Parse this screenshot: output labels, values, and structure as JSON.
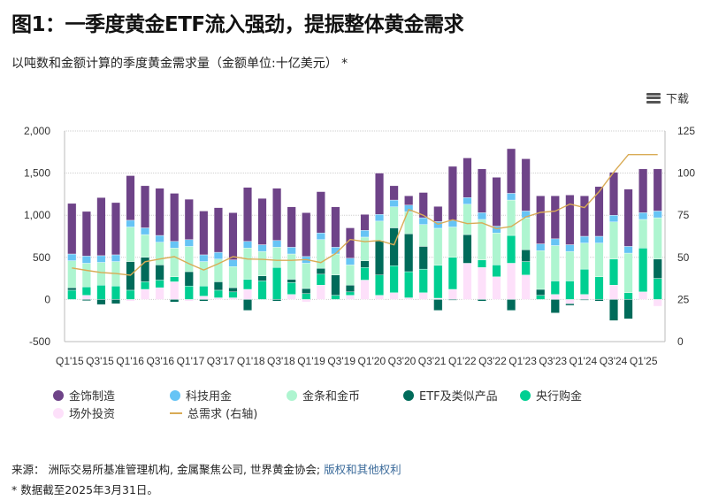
{
  "title": "图1：一季度黄金ETF流入强劲，提振整体黄金需求",
  "subtitle": "以吨数和金额计算的季度黄金需求量（金额单位:十亿美元） *",
  "download_label": "下载",
  "legend": [
    {
      "label": "金饰制造",
      "color": "#6e4388",
      "type": "dot"
    },
    {
      "label": "科技用金",
      "color": "#66c4f5",
      "type": "dot"
    },
    {
      "label": "金条和金币",
      "color": "#aef5d0",
      "type": "dot"
    },
    {
      "label": "ETF及类似产品",
      "color": "#006b5a",
      "type": "dot"
    },
    {
      "label": "央行购金",
      "color": "#00cf92",
      "type": "dot"
    },
    {
      "label": "场外投资",
      "color": "#fde0fa",
      "type": "dot"
    },
    {
      "label": "总需求 (右轴)",
      "color": "#d9ab55",
      "type": "line"
    }
  ],
  "footer": {
    "source_prefix": "来源：",
    "source_text": "洲际交易所基准管理机构, 金属聚焦公司, 世界黄金协会;",
    "link_text": "版权和其他权利",
    "note": "* 数据截至2025年3月31日。"
  },
  "chart_data": {
    "type": "bar",
    "stacked": true,
    "title": "图1：一季度黄金ETF流入强劲，提振整体黄金需求",
    "ylabel": "吨",
    "y2label": "十亿美元",
    "ylim": [
      -500,
      2000
    ],
    "y2lim": [
      0,
      125
    ],
    "yticks": [
      "2,000",
      "1,500",
      "1,000",
      "500",
      "0",
      "-500"
    ],
    "y2ticks": [
      "125",
      "100",
      "75",
      "50",
      "25",
      "0"
    ],
    "xtick_labels": [
      "Q1'15",
      "Q3'15",
      "Q1'16",
      "Q3'16",
      "Q1'17",
      "Q3'17",
      "Q1'18",
      "Q3'18",
      "Q1'19",
      "Q3'19",
      "Q1'20",
      "Q3'20",
      "Q3'21",
      "Q1'22",
      "Q3'22",
      "Q1'23",
      "Q3'23",
      "Q1'24",
      "Q3'24",
      "Q1'25"
    ],
    "grid": true,
    "legend_position": "bottom",
    "series": [
      {
        "name": "场外投资",
        "color": "#fde0fa",
        "values": [
          0,
          50,
          0,
          0,
          -20,
          120,
          140,
          210,
          -20,
          40,
          20,
          20,
          120,
          0,
          0,
          60,
          -30,
          170,
          0,
          50,
          230,
          50,
          80,
          20,
          80,
          15,
          120,
          430,
          380,
          270,
          430,
          290,
          0,
          60,
          -50,
          60,
          0,
          170,
          0,
          90,
          -80
        ]
      },
      {
        "name": "央行购金",
        "color": "#00cf92",
        "values": [
          110,
          100,
          170,
          160,
          110,
          90,
          90,
          60,
          160,
          120,
          90,
          70,
          120,
          220,
          380,
          140,
          70,
          130,
          50,
          40,
          150,
          240,
          320,
          310,
          280,
          390,
          380,
          0,
          90,
          140,
          330,
          160,
          50,
          160,
          220,
          300,
          270,
          310,
          80,
          520,
          250
        ]
      },
      {
        "name": "ETF及类似产品",
        "color": "#006b5a",
        "values": [
          30,
          -15,
          -60,
          -50,
          340,
          290,
          180,
          -30,
          170,
          -20,
          100,
          50,
          -130,
          60,
          -20,
          40,
          60,
          70,
          240,
          80,
          80,
          410,
          450,
          450,
          270,
          -130,
          -10,
          340,
          -20,
          0,
          -130,
          140,
          70,
          -160,
          -20,
          -10,
          -20,
          -250,
          -230,
          0,
          230
        ]
      },
      {
        "name": "金条和金币",
        "color": "#aef5d0",
        "values": [
          320,
          280,
          270,
          290,
          410,
          270,
          270,
          340,
          300,
          290,
          270,
          250,
          370,
          290,
          240,
          300,
          300,
          340,
          250,
          240,
          280,
          230,
          250,
          260,
          260,
          440,
          360,
          360,
          480,
          380,
          420,
          380,
          460,
          420,
          350,
          310,
          400,
          440,
          470,
          340,
          490
        ]
      },
      {
        "name": "科技用金",
        "color": "#66c4f5",
        "values": [
          80,
          85,
          80,
          80,
          80,
          80,
          80,
          80,
          80,
          80,
          80,
          80,
          80,
          80,
          80,
          80,
          80,
          80,
          80,
          80,
          80,
          80,
          80,
          80,
          80,
          80,
          80,
          80,
          80,
          80,
          80,
          80,
          80,
          80,
          80,
          80,
          80,
          80,
          80,
          80,
          80
        ]
      },
      {
        "name": "金饰制造",
        "color": "#6e4388",
        "values": [
          600,
          530,
          690,
          620,
          530,
          500,
          560,
          570,
          480,
          520,
          530,
          560,
          640,
          550,
          620,
          480,
          520,
          490,
          480,
          360,
          190,
          490,
          170,
          110,
          300,
          180,
          640,
          470,
          520,
          580,
          530,
          620,
          570,
          510,
          590,
          480,
          590,
          510,
          680,
          520,
          500
        ]
      }
    ],
    "line": {
      "name": "总需求 (右轴)",
      "axis": "right",
      "color": "#d9ab55",
      "values": [
        43.7,
        42.3,
        41,
        40.4,
        39.4,
        47.4,
        49,
        50.4,
        46.2,
        42.5,
        46.2,
        50.4,
        49,
        48.8,
        48.2,
        48.2,
        48.7,
        46.9,
        52.2,
        60.6,
        59.3,
        60,
        57.4,
        78.4,
        75,
        69.7,
        72.3,
        70,
        70.5,
        67,
        68.3,
        74,
        76.7,
        77.4,
        81.6,
        79.5,
        89,
        100.5,
        111,
        111,
        111
      ]
    }
  }
}
